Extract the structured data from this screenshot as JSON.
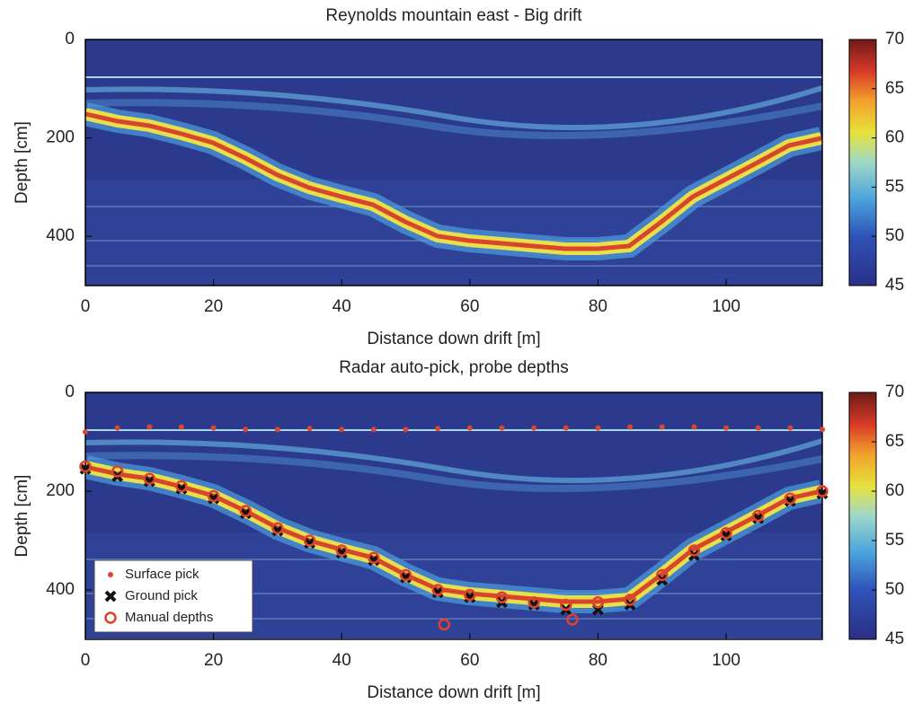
{
  "chart_data": [
    {
      "type": "heatmap",
      "title": "Reynolds mountain east - Big drift",
      "xlabel": "Distance down drift [m]",
      "ylabel": "Depth [cm]",
      "xlim": [
        0,
        115
      ],
      "xticks": [
        0,
        20,
        40,
        60,
        80,
        100
      ],
      "ylim": [
        0,
        500
      ],
      "yticks": [
        0,
        200,
        400
      ],
      "y_reversed": true,
      "colorbar": {
        "clim": [
          45,
          70
        ],
        "ticks": [
          45,
          50,
          55,
          60,
          65,
          70
        ]
      }
    },
    {
      "type": "scatter",
      "title": "Radar auto-pick, probe depths",
      "xlabel": "Distance down drift [m]",
      "ylabel": "Depth [cm]",
      "xlim": [
        0,
        115
      ],
      "xticks": [
        0,
        20,
        40,
        60,
        80,
        100
      ],
      "ylim": [
        0,
        500
      ],
      "yticks": [
        0,
        200,
        400
      ],
      "y_reversed": true,
      "colorbar": {
        "clim": [
          45,
          70
        ],
        "ticks": [
          45,
          50,
          55,
          60,
          65,
          70
        ]
      },
      "legend": "lower left",
      "series": [
        {
          "name": "Surface pick",
          "color": "#d9452f",
          "marker": "dot",
          "x": [
            0,
            5,
            10,
            15,
            20,
            25,
            30,
            35,
            40,
            45,
            50,
            55,
            60,
            65,
            70,
            75,
            80,
            85,
            90,
            95,
            100,
            105,
            110,
            115
          ],
          "values": [
            80,
            72,
            70,
            70,
            72,
            75,
            75,
            73,
            75,
            75,
            75,
            73,
            72,
            72,
            72,
            72,
            72,
            70,
            70,
            70,
            72,
            72,
            72,
            75
          ]
        },
        {
          "name": "Ground pick",
          "color": "#111111",
          "marker": "x",
          "x": [
            0,
            5,
            10,
            15,
            20,
            25,
            30,
            35,
            40,
            45,
            50,
            55,
            60,
            65,
            70,
            75,
            80,
            85,
            90,
            95,
            100,
            105,
            110,
            115
          ],
          "values": [
            155,
            170,
            180,
            195,
            215,
            245,
            280,
            305,
            325,
            340,
            375,
            405,
            415,
            425,
            430,
            440,
            440,
            430,
            380,
            330,
            290,
            255,
            220,
            205
          ]
        },
        {
          "name": "Manual depths",
          "color": "#e0412c",
          "marker": "ring",
          "x": [
            0,
            5,
            10,
            15,
            20,
            25,
            30,
            35,
            40,
            45,
            50,
            55,
            56,
            60,
            65,
            70,
            75,
            76,
            80,
            85,
            90,
            95,
            100,
            105,
            110,
            115
          ],
          "values": [
            150,
            160,
            175,
            190,
            210,
            240,
            275,
            300,
            320,
            335,
            370,
            400,
            470,
            410,
            415,
            425,
            430,
            460,
            425,
            420,
            370,
            320,
            285,
            250,
            215,
            200
          ]
        }
      ]
    }
  ]
}
